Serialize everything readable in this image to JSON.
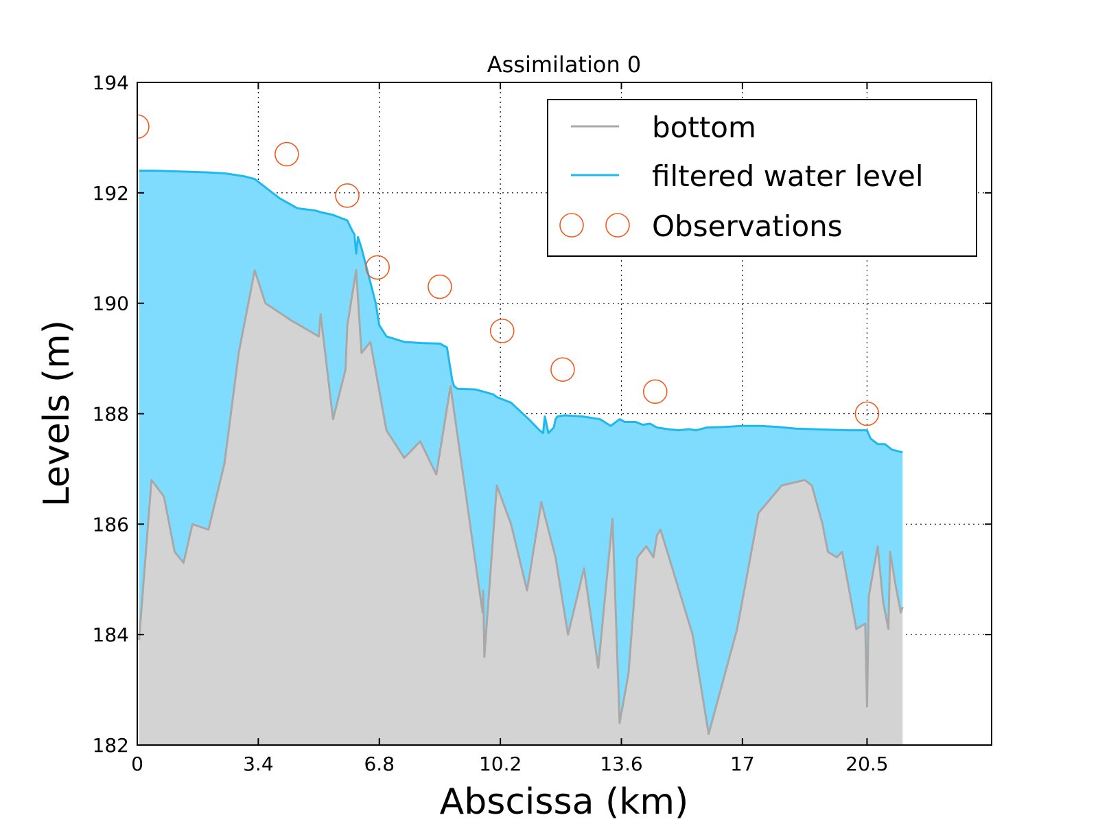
{
  "chart_data": {
    "type": "area",
    "title": "Assimilation 0",
    "xlabel": "Abscissa (km)",
    "ylabel": "Levels (m)",
    "xlim": [
      0,
      24
    ],
    "ylim": [
      182,
      194
    ],
    "xticks": [
      0,
      3.4,
      6.8,
      10.2,
      13.6,
      17,
      20.5
    ],
    "xtick_labels": [
      "0",
      "3.4",
      "6.8",
      "10.2",
      "13.6",
      "17",
      "20.5"
    ],
    "yticks": [
      182,
      184,
      186,
      188,
      190,
      192,
      194
    ],
    "ytick_labels": [
      "182",
      "184",
      "186",
      "188",
      "190",
      "192",
      "194"
    ],
    "grid": true,
    "legend_position": "top-right",
    "colors": {
      "bottom_line": "#a8a8a8",
      "bottom_fill": "#d3d3d3",
      "water_line": "#1fb8ec",
      "water_fill": "#80dcff",
      "observation": "#f05a1e"
    },
    "series": [
      {
        "name": "bottom",
        "x": [
          0.05,
          0.4,
          0.75,
          1.05,
          1.3,
          1.55,
          2.0,
          2.45,
          2.85,
          3.3,
          3.6,
          4.3,
          5.1,
          5.15,
          5.5,
          5.85,
          5.9,
          6.15,
          6.3,
          6.55,
          7.0,
          7.5,
          7.95,
          8.4,
          8.8,
          9.7,
          9.72,
          9.75,
          10.1,
          10.5,
          10.95,
          11.35,
          11.75,
          12.1,
          12.55,
          12.95,
          13.35,
          13.55,
          13.8,
          14.05,
          14.3,
          14.5,
          14.6,
          14.7,
          15.6,
          16.05,
          16.85,
          17.45,
          18.1,
          18.75,
          18.95,
          19.25,
          19.4,
          19.65,
          19.8,
          20.2,
          20.45,
          20.5,
          20.55,
          20.8,
          20.95,
          21.1,
          21.15,
          21.3,
          21.45,
          21.5
        ],
        "y": [
          183.9,
          186.8,
          186.5,
          185.5,
          185.3,
          186.0,
          185.9,
          187.1,
          189.1,
          190.6,
          190.0,
          189.7,
          189.4,
          189.8,
          187.9,
          188.8,
          189.6,
          190.6,
          189.1,
          189.3,
          187.7,
          187.2,
          187.5,
          186.9,
          188.5,
          184.4,
          184.8,
          183.6,
          186.7,
          186.0,
          184.8,
          186.4,
          185.4,
          184.0,
          185.2,
          183.4,
          186.1,
          182.4,
          183.3,
          185.4,
          185.6,
          185.4,
          185.8,
          185.9,
          184.0,
          182.2,
          184.1,
          186.2,
          186.7,
          186.8,
          186.7,
          186.0,
          185.5,
          185.4,
          185.5,
          184.1,
          184.2,
          182.7,
          184.7,
          185.6,
          184.6,
          184.1,
          185.5,
          184.9,
          184.4,
          184.5
        ]
      },
      {
        "name": "filtered water level",
        "x": [
          0.05,
          0.5,
          1.0,
          1.5,
          2.0,
          2.5,
          3.0,
          3.3,
          3.6,
          4.0,
          4.5,
          5.0,
          5.15,
          5.5,
          5.9,
          6.05,
          6.1,
          6.15,
          6.2,
          6.3,
          6.5,
          6.7,
          6.8,
          6.9,
          7.0,
          7.5,
          8.0,
          8.5,
          8.7,
          8.8,
          8.85,
          8.9,
          9.0,
          9.5,
          10.0,
          10.1,
          10.5,
          11.0,
          11.3,
          11.4,
          11.45,
          11.55,
          11.7,
          11.75,
          11.8,
          12.0,
          12.5,
          13.0,
          13.3,
          13.55,
          13.7,
          14.0,
          14.2,
          14.4,
          14.6,
          14.9,
          15.2,
          15.5,
          15.7,
          16.0,
          16.5,
          17.0,
          17.5,
          18.0,
          18.5,
          19.0,
          19.5,
          20.0,
          20.5,
          20.6,
          20.8,
          21.0,
          21.2,
          21.5
        ],
        "y": [
          192.4,
          192.4,
          192.39,
          192.38,
          192.37,
          192.35,
          192.3,
          192.25,
          192.1,
          191.9,
          191.72,
          191.68,
          191.65,
          191.6,
          191.5,
          191.3,
          191.25,
          190.9,
          191.2,
          191.0,
          190.5,
          190.0,
          189.6,
          189.5,
          189.4,
          189.3,
          189.28,
          189.27,
          189.2,
          188.8,
          188.6,
          188.5,
          188.45,
          188.44,
          188.35,
          188.3,
          188.2,
          187.9,
          187.7,
          187.65,
          187.95,
          187.65,
          187.75,
          187.9,
          187.95,
          187.97,
          187.95,
          187.9,
          187.78,
          187.9,
          187.85,
          187.85,
          187.8,
          187.82,
          187.75,
          187.72,
          187.7,
          187.72,
          187.7,
          187.75,
          187.76,
          187.78,
          187.78,
          187.76,
          187.73,
          187.72,
          187.71,
          187.7,
          187.7,
          187.55,
          187.45,
          187.45,
          187.35,
          187.3
        ]
      },
      {
        "name": "Observations",
        "x": [
          0.0,
          4.2,
          5.9,
          6.75,
          8.5,
          10.25,
          11.95,
          14.55,
          20.5
        ],
        "y": [
          193.2,
          192.7,
          191.95,
          190.65,
          190.3,
          189.5,
          188.8,
          188.4,
          188.0
        ]
      }
    ]
  }
}
